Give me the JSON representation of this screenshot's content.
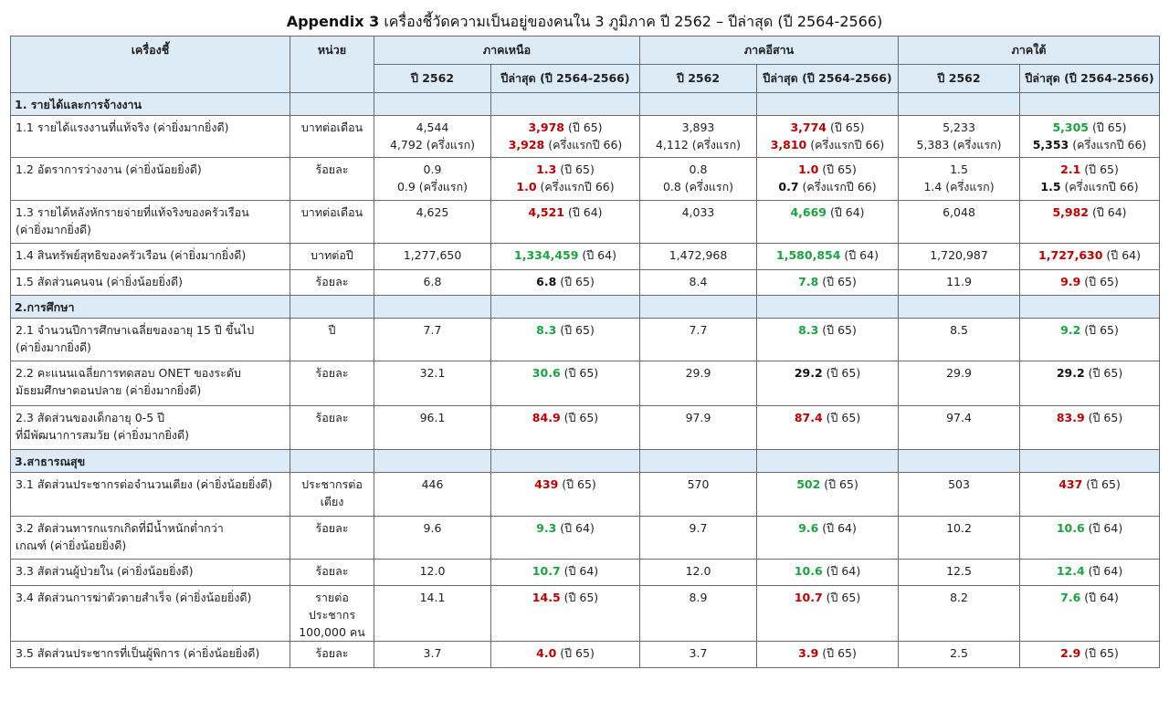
{
  "title": {
    "prefix": "Appendix 3",
    "text": "เครื่องชี้วัดความเป็นอยู่ของคนใน 3 ภูมิภาค ปี 2562 – ปีล่าสุด (ปี 2564-2566)"
  },
  "header": {
    "indicator": "เครื่องชี้",
    "unit": "หน่วย",
    "regions": [
      "ภาคเหนือ",
      "ภาคอีสาน",
      "ภาคใต้"
    ],
    "col_base": "ปี 2562",
    "col_latest": "ปีล่าสุด (ปี 2564-2566)"
  },
  "sections": [
    {
      "title": "1. รายได้และการจ้างงาน",
      "rows": [
        {
          "label": [
            "1.1 รายได้แรงงานที่แท้จริง (ค่ายิ่งมากยิ่งดี)"
          ],
          "unit": [
            "บาทต่อเดือน"
          ],
          "cells": [
            {
              "base": [
                "4,544",
                "4,792 (ครึ่งแรก)"
              ],
              "latest": [
                {
                  "v": "3,978",
                  "t": " (ปี 65)",
                  "c": "red"
                },
                {
                  "v": "3,928",
                  "t": " (ครึ่งแรกปี 66)",
                  "c": "red"
                }
              ]
            },
            {
              "base": [
                "3,893",
                "4,112 (ครึ่งแรก)"
              ],
              "latest": [
                {
                  "v": "3,774",
                  "t": " (ปี 65)",
                  "c": "red"
                },
                {
                  "v": "3,810",
                  "t": " (ครึ่งแรกปี 66)",
                  "c": "red"
                }
              ]
            },
            {
              "base": [
                "5,233",
                "5,383 (ครึ่งแรก)"
              ],
              "latest": [
                {
                  "v": "5,305",
                  "t": " (ปี 65)",
                  "c": "green"
                },
                {
                  "v": "5,353",
                  "t": " (ครึ่งแรกปี 66)",
                  "c": "black"
                }
              ]
            }
          ]
        },
        {
          "label": [
            "1.2 อัตราการว่างงาน (ค่ายิ่งน้อยยิ่งดี)"
          ],
          "unit": [
            "ร้อยละ"
          ],
          "cells": [
            {
              "base": [
                "0.9",
                "0.9 (ครึ่งแรก)"
              ],
              "latest": [
                {
                  "v": "1.3",
                  "t": " (ปี 65)",
                  "c": "red"
                },
                {
                  "v": "1.0",
                  "t": " (ครึ่งแรกปี 66)",
                  "c": "red"
                }
              ]
            },
            {
              "base": [
                "0.8",
                "0.8 (ครึ่งแรก)"
              ],
              "latest": [
                {
                  "v": "1.0",
                  "t": " (ปี 65)",
                  "c": "red"
                },
                {
                  "v": "0.7",
                  "t": " (ครึ่งแรกปี 66)",
                  "c": "black"
                }
              ]
            },
            {
              "base": [
                "1.5",
                "1.4 (ครึ่งแรก)"
              ],
              "latest": [
                {
                  "v": "2.1",
                  "t": " (ปี 65)",
                  "c": "red"
                },
                {
                  "v": "1.5",
                  "t": " (ครึ่งแรกปี 66)",
                  "c": "black"
                }
              ]
            }
          ]
        },
        {
          "label": [
            "1.3 รายได้หลังหักรายจ่ายที่แท้จริงของครัวเรือน",
            "(ค่ายิ่งมากยิ่งดี)"
          ],
          "unit": [
            "บาทต่อเดือน"
          ],
          "cells": [
            {
              "base": [
                "4,625"
              ],
              "latest": [
                {
                  "v": "4,521",
                  "t": " (ปี 64)",
                  "c": "red"
                }
              ]
            },
            {
              "base": [
                "4,033"
              ],
              "latest": [
                {
                  "v": "4,669",
                  "t": " (ปี 64)",
                  "c": "green"
                }
              ]
            },
            {
              "base": [
                "6,048"
              ],
              "latest": [
                {
                  "v": "5,982",
                  "t": " (ปี 64)",
                  "c": "red"
                }
              ]
            }
          ]
        },
        {
          "label": [
            "1.4 สินทรัพย์สุทธิของครัวเรือน (ค่ายิ่งมากยิ่งดี)"
          ],
          "unit": [
            "บาทต่อปี"
          ],
          "cells": [
            {
              "base": [
                "1,277,650"
              ],
              "latest": [
                {
                  "v": "1,334,459",
                  "t": " (ปี 64)",
                  "c": "green"
                }
              ]
            },
            {
              "base": [
                "1,472,968"
              ],
              "latest": [
                {
                  "v": "1,580,854",
                  "t": " (ปี 64)",
                  "c": "green"
                }
              ]
            },
            {
              "base": [
                "1,720,987"
              ],
              "latest": [
                {
                  "v": "1,727,630",
                  "t": " (ปี 64)",
                  "c": "red"
                }
              ]
            }
          ]
        },
        {
          "label": [
            "1.5 สัดส่วนคนจน (ค่ายิ่งน้อยยิ่งดี)"
          ],
          "unit": [
            "ร้อยละ"
          ],
          "cells": [
            {
              "base": [
                "6.8"
              ],
              "latest": [
                {
                  "v": "6.8",
                  "t": " (ปี 65)",
                  "c": "black"
                }
              ]
            },
            {
              "base": [
                "8.4"
              ],
              "latest": [
                {
                  "v": "7.8",
                  "t": " (ปี 65)",
                  "c": "green"
                }
              ]
            },
            {
              "base": [
                "11.9"
              ],
              "latest": [
                {
                  "v": "9.9",
                  "t": " (ปี 65)",
                  "c": "red"
                }
              ]
            }
          ]
        }
      ]
    },
    {
      "title": "2.การศึกษา",
      "rows": [
        {
          "label": [
            "2.1 จำนวนปีการศึกษาเฉลี่ยของอายุ 15 ปี ขึ้นไป",
            "(ค่ายิ่งมากยิ่งดี)"
          ],
          "unit": [
            "ปี"
          ],
          "cells": [
            {
              "base": [
                "7.7"
              ],
              "latest": [
                {
                  "v": "8.3",
                  "t": " (ปี 65)",
                  "c": "green"
                }
              ]
            },
            {
              "base": [
                "7.7"
              ],
              "latest": [
                {
                  "v": "8.3",
                  "t": " (ปี 65)",
                  "c": "green"
                }
              ]
            },
            {
              "base": [
                "8.5"
              ],
              "latest": [
                {
                  "v": "9.2",
                  "t": " (ปี 65)",
                  "c": "green"
                }
              ]
            }
          ]
        },
        {
          "label": [
            "2.2 คะแนนเฉลี่ยการทดสอบ ONET ของระดับ",
            "มัธยมศึกษาตอนปลาย (ค่ายิ่งมากยิ่งดี)"
          ],
          "unit": [
            "ร้อยละ"
          ],
          "cells": [
            {
              "base": [
                "32.1"
              ],
              "latest": [
                {
                  "v": "30.6",
                  "t": " (ปี 65)",
                  "c": "green"
                }
              ]
            },
            {
              "base": [
                "29.9"
              ],
              "latest": [
                {
                  "v": "29.2",
                  "t": " (ปี 65)",
                  "c": "black"
                }
              ]
            },
            {
              "base": [
                "29.9"
              ],
              "latest": [
                {
                  "v": "29.2",
                  "t": " (ปี 65)",
                  "c": "black"
                }
              ]
            }
          ]
        },
        {
          "label": [
            "2.3 สัดส่วนของเด็กอายุ 0-5 ปี",
            "ที่มีพัฒนาการสมวัย (ค่ายิ่งมากยิ่งดี)"
          ],
          "unit": [
            "ร้อยละ"
          ],
          "cells": [
            {
              "base": [
                "96.1"
              ],
              "latest": [
                {
                  "v": "84.9",
                  "t": " (ปี 65)",
                  "c": "red"
                }
              ]
            },
            {
              "base": [
                "97.9"
              ],
              "latest": [
                {
                  "v": "87.4",
                  "t": " (ปี 65)",
                  "c": "red"
                }
              ]
            },
            {
              "base": [
                "97.4"
              ],
              "latest": [
                {
                  "v": "83.9",
                  "t": " (ปี 65)",
                  "c": "red"
                }
              ]
            }
          ]
        }
      ]
    },
    {
      "title": "3.สาธารณสุข",
      "rows": [
        {
          "label": [
            "3.1 สัดส่วนประชากรต่อจำนวนเตียง (ค่ายิ่งน้อยยิ่งดี)"
          ],
          "unit": [
            "ประชากรต่อ",
            "เตียง"
          ],
          "cells": [
            {
              "base": [
                "446"
              ],
              "latest": [
                {
                  "v": "439",
                  "t": " (ปี 65)",
                  "c": "red"
                }
              ]
            },
            {
              "base": [
                "570"
              ],
              "latest": [
                {
                  "v": "502",
                  "t": " (ปี 65)",
                  "c": "green"
                }
              ]
            },
            {
              "base": [
                "503"
              ],
              "latest": [
                {
                  "v": "437",
                  "t": " (ปี 65)",
                  "c": "red"
                }
              ]
            }
          ]
        },
        {
          "label": [
            "3.2 สัดส่วนทารกแรกเกิดที่มีน้ำหนักต่ำกว่า",
            "เกณฑ์ (ค่ายิ่งน้อยยิ่งดี)"
          ],
          "unit": [
            "ร้อยละ"
          ],
          "cells": [
            {
              "base": [
                "9.6"
              ],
              "latest": [
                {
                  "v": "9.3",
                  "t": " (ปี 64)",
                  "c": "green"
                }
              ]
            },
            {
              "base": [
                "9.7"
              ],
              "latest": [
                {
                  "v": "9.6",
                  "t": " (ปี 64)",
                  "c": "green"
                }
              ]
            },
            {
              "base": [
                "10.2"
              ],
              "latest": [
                {
                  "v": "10.6",
                  "t": " (ปี 64)",
                  "c": "green"
                }
              ]
            }
          ]
        },
        {
          "label": [
            "3.3 สัดส่วนผู้ป่วยใน (ค่ายิ่งน้อยยิ่งดี)"
          ],
          "unit": [
            "ร้อยละ"
          ],
          "cells": [
            {
              "base": [
                "12.0"
              ],
              "latest": [
                {
                  "v": "10.7",
                  "t": " (ปี 64)",
                  "c": "green"
                }
              ]
            },
            {
              "base": [
                "12.0"
              ],
              "latest": [
                {
                  "v": "10.6",
                  "t": " (ปี 64)",
                  "c": "green"
                }
              ]
            },
            {
              "base": [
                "12.5"
              ],
              "latest": [
                {
                  "v": "12.4",
                  "t": " (ปี 64)",
                  "c": "green"
                }
              ]
            }
          ]
        },
        {
          "label": [
            "3.4 สัดส่วนการฆ่าตัวตายสำเร็จ (ค่ายิ่งน้อยยิ่งดี)"
          ],
          "unit": [
            "รายต่อ",
            "ประชากร",
            "100,000 คน"
          ],
          "cells": [
            {
              "base": [
                "14.1"
              ],
              "latest": [
                {
                  "v": "14.5",
                  "t": " (ปี 65)",
                  "c": "red"
                }
              ]
            },
            {
              "base": [
                "8.9"
              ],
              "latest": [
                {
                  "v": "10.7",
                  "t": " (ปี 65)",
                  "c": "red"
                }
              ]
            },
            {
              "base": [
                "8.2"
              ],
              "latest": [
                {
                  "v": "7.6",
                  "t": " (ปี 64)",
                  "c": "green"
                }
              ]
            }
          ]
        },
        {
          "label": [
            "3.5 สัดส่วนประชากรที่เป็นผู้พิการ (ค่ายิ่งน้อยยิ่งดี)"
          ],
          "unit": [
            "ร้อยละ"
          ],
          "cells": [
            {
              "base": [
                "3.7"
              ],
              "latest": [
                {
                  "v": "4.0",
                  "t": " (ปี 65)",
                  "c": "red"
                }
              ]
            },
            {
              "base": [
                "3.7"
              ],
              "latest": [
                {
                  "v": "3.9",
                  "t": " (ปี 65)",
                  "c": "red"
                }
              ]
            },
            {
              "base": [
                "2.5"
              ],
              "latest": [
                {
                  "v": "2.9",
                  "t": " (ปี 65)",
                  "c": "red"
                }
              ]
            }
          ]
        }
      ]
    }
  ]
}
